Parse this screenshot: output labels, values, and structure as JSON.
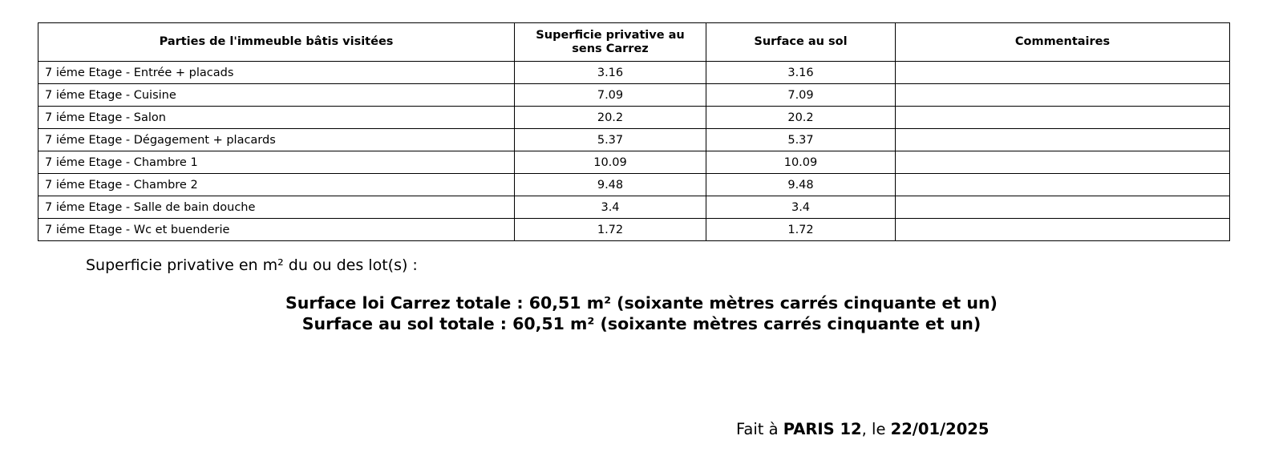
{
  "table": {
    "headers": [
      "Parties de l'immeuble bâtis visitées",
      "Superficie privative au sens Carrez",
      "Surface au sol",
      "Commentaires"
    ],
    "rows": [
      {
        "part": "7 iéme Etage - Entrée + placads",
        "carrez": "3.16",
        "sol": "3.16"
      },
      {
        "part": "7 iéme Etage - Cuisine",
        "carrez": "7.09",
        "sol": "7.09"
      },
      {
        "part": "7 iéme Etage - Salon",
        "carrez": "20.2",
        "sol": "20.2"
      },
      {
        "part": "7 iéme Etage - Dégagement + placards",
        "carrez": "5.37",
        "sol": "5.37"
      },
      {
        "part": "7 iéme Etage - Chambre 1",
        "carrez": "10.09",
        "sol": "10.09"
      },
      {
        "part": "7 iéme Etage - Chambre 2",
        "carrez": "9.48",
        "sol": "9.48"
      },
      {
        "part": "7 iéme Etage - Salle de bain douche",
        "carrez": "3.4",
        "sol": "3.4"
      },
      {
        "part": "7 iéme Etage - Wc et buenderie",
        "carrez": "1.72",
        "sol": "1.72"
      }
    ]
  },
  "summary": {
    "label": "Superficie privative en m² du ou des lot(s) :",
    "carrez_total": "Surface loi Carrez totale : 60,51 m² (soixante mètres carrés cinquante et un)",
    "sol_total": "Surface au sol totale : 60,51 m² (soixante mètres carrés cinquante et un)"
  },
  "footer": {
    "prefix": "Fait à",
    "city": "PARIS 12",
    "middle": ", le",
    "date": "22/01/2025"
  }
}
